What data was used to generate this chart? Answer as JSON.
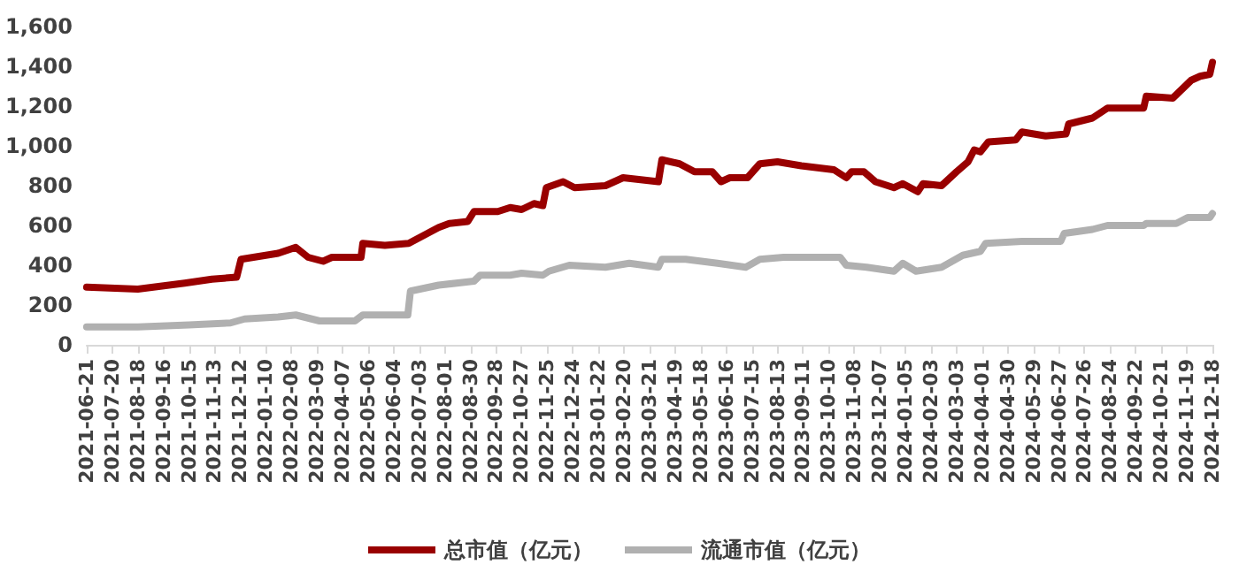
{
  "chart_data": {
    "type": "line",
    "xlim": [
      "2021-06-21",
      "2024-12-18"
    ],
    "xticks": [
      "2021-06-21",
      "2021-07-20",
      "2021-08-18",
      "2021-09-16",
      "2021-10-15",
      "2021-11-13",
      "2021-12-12",
      "2022-01-10",
      "2022-02-08",
      "2022-03-09",
      "2022-04-07",
      "2022-05-06",
      "2022-06-04",
      "2022-07-03",
      "2022-08-01",
      "2022-08-30",
      "2022-09-28",
      "2022-10-27",
      "2022-11-25",
      "2022-12-24",
      "2023-01-22",
      "2023-02-20",
      "2023-03-21",
      "2023-04-19",
      "2023-05-18",
      "2023-06-16",
      "2023-07-15",
      "2023-08-13",
      "2023-09-11",
      "2023-10-10",
      "2023-11-08",
      "2023-12-07",
      "2024-01-05",
      "2024-02-03",
      "2024-03-03",
      "2024-04-01",
      "2024-04-30",
      "2024-05-29",
      "2024-06-27",
      "2024-07-26",
      "2024-08-24",
      "2024-09-22",
      "2024-10-21",
      "2024-11-19",
      "2024-12-18"
    ],
    "ylim": [
      0,
      1600
    ],
    "yticks": [
      0,
      200,
      400,
      600,
      800,
      {
        "value": 1000,
        "label": "1,000"
      },
      {
        "value": 1200,
        "label": "1,200"
      },
      {
        "value": 1400,
        "label": "1,400"
      },
      {
        "value": 1600,
        "label": "1,600"
      }
    ],
    "grid": false,
    "legend": "bottom",
    "marker": "none",
    "line_style": "solid",
    "series": [
      {
        "name": "总市值（亿元）",
        "color": "#990000",
        "x": [
          "2021-06-21",
          "2021-08-18",
          "2021-10-10",
          "2021-11-10",
          "2021-12-08",
          "2021-12-13",
          "2022-01-24",
          "2022-02-13",
          "2022-02-27",
          "2022-03-16",
          "2022-03-26",
          "2022-04-28",
          "2022-04-30",
          "2022-05-25",
          "2022-06-21",
          "2022-07-08",
          "2022-07-25",
          "2022-08-06",
          "2022-08-27",
          "2022-09-03",
          "2022-09-30",
          "2022-10-14",
          "2022-10-27",
          "2022-11-10",
          "2022-11-20",
          "2022-11-24",
          "2022-12-13",
          "2022-12-26",
          "2023-01-30",
          "2023-02-19",
          "2023-03-11",
          "2023-03-31",
          "2023-04-04",
          "2023-04-24",
          "2023-05-11",
          "2023-05-31",
          "2023-06-10",
          "2023-06-20",
          "2023-07-10",
          "2023-07-24",
          "2023-08-13",
          "2023-09-09",
          "2023-10-16",
          "2023-10-30",
          "2023-11-05",
          "2023-11-19",
          "2023-12-02",
          "2023-12-23",
          "2024-01-02",
          "2024-01-19",
          "2024-01-25",
          "2024-02-15",
          "2024-03-03",
          "2024-03-16",
          "2024-03-23",
          "2024-03-30",
          "2024-04-08",
          "2024-05-09",
          "2024-05-16",
          "2024-06-12",
          "2024-07-05",
          "2024-07-08",
          "2024-08-04",
          "2024-08-21",
          "2024-09-14",
          "2024-10-01",
          "2024-10-04",
          "2024-11-03",
          "2024-11-24",
          "2024-12-04",
          "2024-12-15",
          "2024-12-18"
        ],
        "values": [
          290,
          280,
          310,
          330,
          340,
          430,
          460,
          490,
          440,
          420,
          440,
          440,
          510,
          500,
          510,
          550,
          590,
          610,
          620,
          670,
          670,
          690,
          680,
          710,
          700,
          790,
          820,
          790,
          800,
          840,
          830,
          820,
          930,
          910,
          870,
          870,
          820,
          840,
          840,
          910,
          920,
          900,
          880,
          840,
          870,
          870,
          820,
          790,
          810,
          770,
          810,
          800,
          870,
          920,
          980,
          970,
          1020,
          1030,
          1070,
          1050,
          1060,
          1110,
          1140,
          1190,
          1190,
          1190,
          1250,
          1240,
          1330,
          1350,
          1360,
          1420
        ]
      },
      {
        "name": "流通市值（亿元）",
        "color": "#b0b0b0",
        "x": [
          "2021-06-21",
          "2021-08-18",
          "2021-10-15",
          "2021-12-01",
          "2021-12-17",
          "2022-01-24",
          "2022-02-13",
          "2022-03-12",
          "2022-04-21",
          "2022-04-30",
          "2022-06-20",
          "2022-06-23",
          "2022-07-25",
          "2022-09-03",
          "2022-09-10",
          "2022-10-14",
          "2022-10-27",
          "2022-11-20",
          "2022-11-27",
          "2022-12-20",
          "2023-01-30",
          "2023-02-26",
          "2023-03-31",
          "2023-04-04",
          "2023-05-01",
          "2023-06-06",
          "2023-07-08",
          "2023-07-24",
          "2023-08-20",
          "2023-10-23",
          "2023-10-30",
          "2023-11-22",
          "2023-12-23",
          "2024-01-02",
          "2024-01-17",
          "2024-02-15",
          "2024-03-10",
          "2024-03-30",
          "2024-04-05",
          "2024-05-16",
          "2024-06-29",
          "2024-07-03",
          "2024-08-04",
          "2024-08-21",
          "2024-10-01",
          "2024-10-04",
          "2024-11-07",
          "2024-11-20",
          "2024-12-15",
          "2024-12-18"
        ],
        "values": [
          90,
          90,
          100,
          110,
          130,
          140,
          150,
          120,
          120,
          150,
          150,
          270,
          300,
          320,
          350,
          350,
          360,
          350,
          370,
          400,
          390,
          410,
          390,
          430,
          430,
          410,
          390,
          430,
          440,
          440,
          400,
          390,
          370,
          410,
          370,
          390,
          450,
          470,
          510,
          520,
          520,
          560,
          580,
          600,
          600,
          610,
          610,
          640,
          640,
          660
        ]
      }
    ]
  }
}
